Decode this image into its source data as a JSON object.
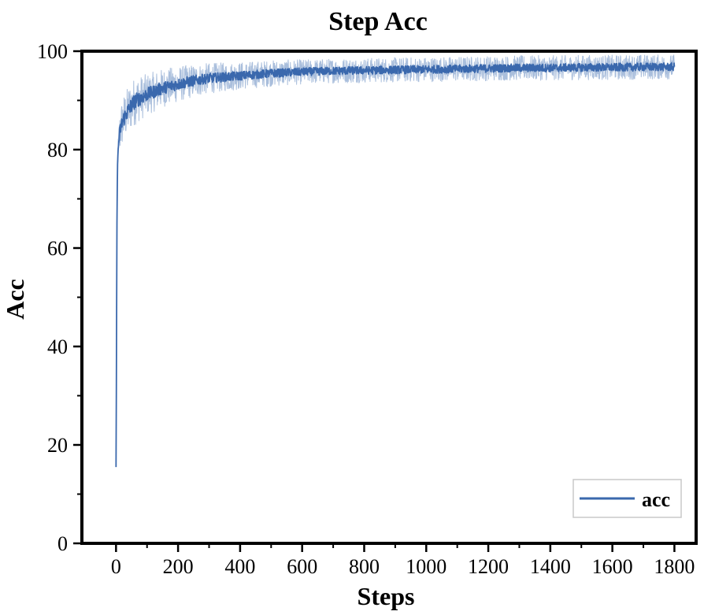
{
  "chart_data": {
    "type": "line",
    "title": "Step Acc",
    "xlabel": "Steps",
    "ylabel": "Acc",
    "xlim": [
      -110,
      1870
    ],
    "ylim": [
      0,
      100
    ],
    "xticks": [
      0,
      200,
      400,
      600,
      800,
      1000,
      1200,
      1400,
      1600,
      1800
    ],
    "yticks": [
      0,
      20,
      40,
      60,
      80,
      100
    ],
    "grid": false,
    "legend_position": "bottom-right",
    "series": [
      {
        "name": "acc",
        "color": "#3a68ad",
        "band_color": "#a9bedc",
        "x": [
          0,
          1,
          2,
          3,
          4,
          5,
          7,
          10,
          15,
          20,
          30,
          40,
          50,
          60,
          80,
          100,
          150,
          200,
          250,
          300,
          400,
          500,
          600,
          700,
          800,
          900,
          1000,
          1100,
          1200,
          1300,
          1400,
          1500,
          1600,
          1700,
          1800
        ],
        "y": [
          15.5,
          30,
          48,
          65,
          72,
          77,
          80,
          82.5,
          84.5,
          85.5,
          87,
          88,
          89,
          89.8,
          90.5,
          91.2,
          92.5,
          93.3,
          94,
          94.5,
          95,
          95.5,
          95.8,
          96,
          96.1,
          96.2,
          96.3,
          96.4,
          96.5,
          96.6,
          96.6,
          96.7,
          96.7,
          96.8,
          96.8
        ],
        "noise": [
          0,
          0,
          0,
          0,
          0,
          0,
          2,
          3,
          3.5,
          3.5,
          3.5,
          3.5,
          3.5,
          3.5,
          3.2,
          3,
          2.8,
          2.6,
          2.4,
          2.2,
          2.0,
          1.9,
          1.8,
          1.8,
          1.8,
          1.8,
          1.8,
          1.8,
          1.8,
          1.8,
          1.8,
          1.8,
          1.8,
          1.8,
          1.8
        ]
      }
    ]
  },
  "legend": {
    "label": "acc"
  }
}
